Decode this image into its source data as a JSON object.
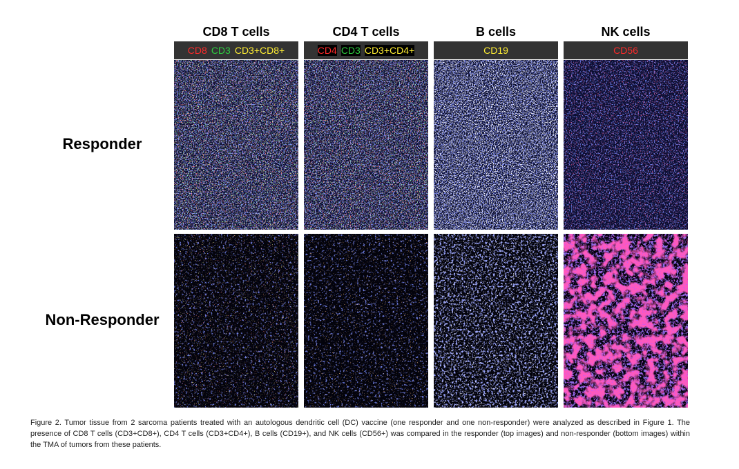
{
  "columns": [
    {
      "title": "CD8 T cells",
      "markers": [
        {
          "text": "CD8",
          "color": "#ff2a2a"
        },
        {
          "text": "CD3",
          "color": "#2ecc40"
        },
        {
          "text": "CD3+CD8+",
          "color": "#ffee33"
        }
      ]
    },
    {
      "title": "CD4 T cells",
      "markers": [
        {
          "text": "CD4",
          "color": "#ff2a2a"
        },
        {
          "text": "CD3",
          "color": "#2ecc40"
        },
        {
          "text": "CD3+CD4+",
          "color": "#ffee33"
        }
      ]
    },
    {
      "title": "B cells",
      "markers": [
        {
          "text": "CD19",
          "color": "#ffee33"
        }
      ]
    },
    {
      "title": "NK cells",
      "markers": [
        {
          "text": "CD56",
          "color": "#ff2a2a"
        }
      ]
    }
  ],
  "rows": [
    "Responder",
    "Non-Responder"
  ],
  "caption": "Figure 2. Tumor tissue from 2 sarcoma patients treated with an autologous dendritic cell (DC) vaccine (one responder and one non-responder) were analyzed as described in Figure 1.  The presence of CD8 T cells (CD3+CD8+), CD4 T cells (CD3+CD4+), B cells (CD19+), and NK cells (CD56+) was compared in the responder (top images) and non-responder (bottom images) within the TMA of tumors from these patients."
}
